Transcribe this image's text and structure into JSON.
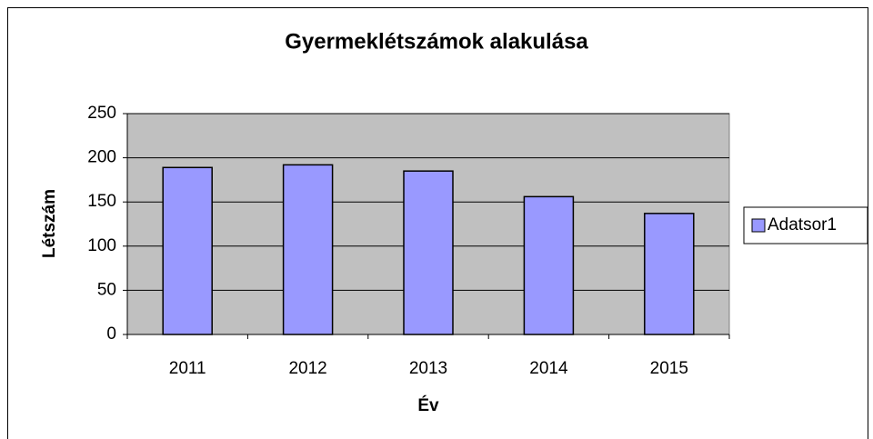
{
  "chart_data": {
    "type": "bar",
    "title": "Gyermeklétszámok alakulása",
    "x_label": "Év",
    "y_label": "Létszám",
    "categories": [
      "2011",
      "2012",
      "2013",
      "2014",
      "2015"
    ],
    "series": [
      {
        "name": "Adatsor1",
        "color": "#9999ff",
        "values": [
          189,
          192,
          185,
          156,
          137
        ]
      }
    ],
    "ylim": [
      0,
      250
    ],
    "yticks": [
      0,
      50,
      100,
      150,
      200,
      250
    ],
    "grid": true,
    "legend": "right"
  }
}
